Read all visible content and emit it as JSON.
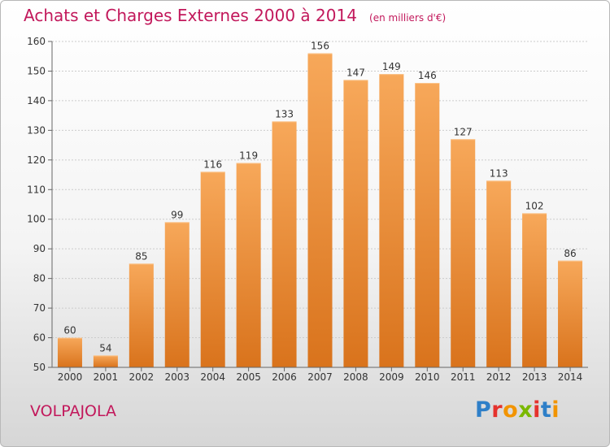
{
  "title": "Achats et Charges Externes 2000 à 2014",
  "subtitle": "(en milliers d'€)",
  "commune": "VOLPAJOLA",
  "logo": {
    "text": "Proxiti",
    "colors": [
      "#2e7fc8",
      "#e5322d",
      "#f29400",
      "#7ab800",
      "#e5322d",
      "#2e7fc8",
      "#f29400"
    ]
  },
  "colors": {
    "title": "#c2185b",
    "bar_top": "#f7a85a",
    "bar_bottom": "#d9731c",
    "grid": "#cccccc",
    "axis": "#666666"
  },
  "chart_data": {
    "type": "bar",
    "title": "Achats et Charges Externes 2000 à 2014",
    "categories": [
      "2000",
      "2001",
      "2002",
      "2003",
      "2004",
      "2005",
      "2006",
      "2007",
      "2008",
      "2009",
      "2010",
      "2011",
      "2012",
      "2013",
      "2014"
    ],
    "values": [
      60,
      54,
      85,
      99,
      116,
      119,
      133,
      156,
      147,
      149,
      146,
      127,
      113,
      102,
      86
    ],
    "ylim": [
      50,
      160
    ],
    "yticks": [
      50,
      60,
      70,
      80,
      90,
      100,
      110,
      120,
      130,
      140,
      150,
      160
    ],
    "grid": true,
    "data_labels": true
  }
}
